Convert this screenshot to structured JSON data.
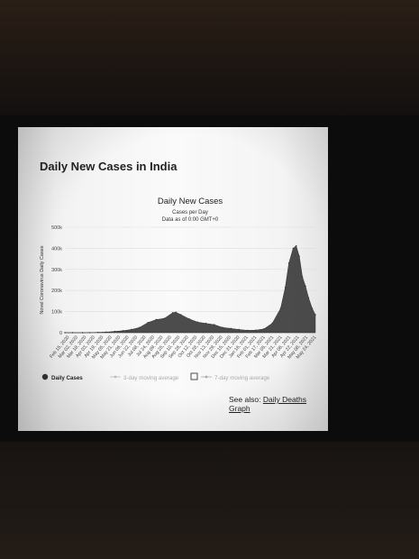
{
  "page": {
    "title": "Daily New Cases in India",
    "see_also_label": "See also:",
    "see_also_link": "Daily Deaths Graph"
  },
  "chart_data": {
    "type": "area",
    "title": "Daily New Cases",
    "subtitle_line1": "Cases per Day",
    "subtitle_line2": "Data as of 0:00 GMT+0",
    "ylabel": "Novel Coronavirus Daily Cases",
    "ylim": [
      0,
      500000
    ],
    "y_ticks": [
      "0",
      "100k",
      "200k",
      "300k",
      "400k",
      "500k"
    ],
    "x_ticks": [
      "Feb 15, 2020",
      "Mar 02, 2020",
      "Mar 18, 2020",
      "Apr 03, 2020",
      "Apr 19, 2020",
      "May 05, 2020",
      "May 21, 2020",
      "Jun 06, 2020",
      "Jun 22, 2020",
      "Jul 08, 2020",
      "Jul 24, 2020",
      "Aug 09, 2020",
      "Aug 25, 2020",
      "Sep 10, 2020",
      "Sep 26, 2020",
      "Oct 12, 2020",
      "Oct 28, 2020",
      "Nov 13, 2020",
      "Nov 29, 2020",
      "Dec 15, 2020",
      "Dec 31, 2020",
      "Jan 16, 2021",
      "Feb 01, 2021",
      "Feb 17, 2021",
      "Mar 05, 2021",
      "Mar 21, 2021",
      "Apr 06, 2021",
      "Apr 22, 2021",
      "May 08, 2021",
      "May 24, 2021"
    ],
    "series": [
      {
        "name": "Daily Cases",
        "color": "#333333",
        "points": [
          [
            "2020-02-15",
            0
          ],
          [
            "2020-03-01",
            0
          ],
          [
            "2020-03-20",
            100
          ],
          [
            "2020-04-03",
            600
          ],
          [
            "2020-04-19",
            1500
          ],
          [
            "2020-05-05",
            3000
          ],
          [
            "2020-05-21",
            6000
          ],
          [
            "2020-06-06",
            9500
          ],
          [
            "2020-06-22",
            15000
          ],
          [
            "2020-07-08",
            25000
          ],
          [
            "2020-07-24",
            48000
          ],
          [
            "2020-08-09",
            62000
          ],
          [
            "2020-08-25",
            68000
          ],
          [
            "2020-09-10",
            95000
          ],
          [
            "2020-09-16",
            97000
          ],
          [
            "2020-09-26",
            85000
          ],
          [
            "2020-10-12",
            65000
          ],
          [
            "2020-10-28",
            50000
          ],
          [
            "2020-11-13",
            44000
          ],
          [
            "2020-11-29",
            38000
          ],
          [
            "2020-12-15",
            25000
          ],
          [
            "2020-12-31",
            20000
          ],
          [
            "2021-01-16",
            15000
          ],
          [
            "2021-02-01",
            11000
          ],
          [
            "2021-02-17",
            12000
          ],
          [
            "2021-03-05",
            18000
          ],
          [
            "2021-03-21",
            45000
          ],
          [
            "2021-04-06",
            115000
          ],
          [
            "2021-04-15",
            215000
          ],
          [
            "2021-04-22",
            330000
          ],
          [
            "2021-04-30",
            400000
          ],
          [
            "2021-05-06",
            412000
          ],
          [
            "2021-05-12",
            362000
          ],
          [
            "2021-05-18",
            265000
          ],
          [
            "2021-05-24",
            220000
          ],
          [
            "2021-05-30",
            165000
          ],
          [
            "2021-06-06",
            115000
          ],
          [
            "2021-06-12",
            85000
          ]
        ]
      }
    ],
    "legend": [
      {
        "name": "Daily Cases",
        "color": "#333333",
        "active": true
      },
      {
        "name": "3-day moving average",
        "color": "#bbbbbb",
        "active": false
      },
      {
        "name": "7-day moving average",
        "color": "#aaaaaa",
        "active": false
      }
    ],
    "grid": true,
    "legend_position": "bottom-left"
  }
}
